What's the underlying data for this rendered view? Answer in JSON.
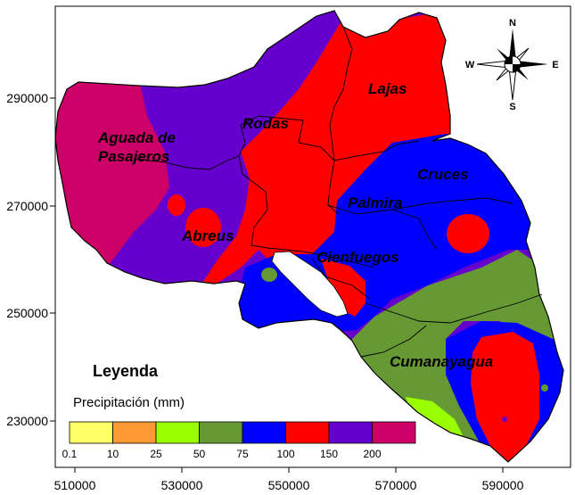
{
  "map": {
    "x_ticks": [
      "510000",
      "530000",
      "550000",
      "570000",
      "590000"
    ],
    "y_ticks": [
      "290000",
      "270000",
      "250000",
      "230000"
    ],
    "municipalities": [
      {
        "name": "Aguada de",
        "name2": "Pasajeros"
      },
      {
        "name": "Rodas"
      },
      {
        "name": "Lajas"
      },
      {
        "name": "Cruces"
      },
      {
        "name": "Palmira"
      },
      {
        "name": "Abreus"
      },
      {
        "name": "Cienfuegos"
      },
      {
        "name": "Cumanayagua"
      }
    ],
    "compass": {
      "n": "N",
      "s": "S",
      "e": "E",
      "w": "W"
    }
  },
  "legend": {
    "title": "Leyenda",
    "subtitle": "Precipitación (mm)",
    "breaks": [
      "0.1",
      "10",
      "25",
      "50",
      "75",
      "100",
      "150",
      "200"
    ],
    "colors": [
      "#ffff66",
      "#ff9933",
      "#99ff00",
      "#669933",
      "#0000ff",
      "#ff0000",
      "#6600cc",
      "#cc0066"
    ]
  },
  "colors": {
    "prec_200_plus": "#cc0066",
    "prec_150_200": "#6600cc",
    "prec_100_150": "#ff0000",
    "prec_75_100": "#0000ff",
    "prec_50_75": "#669933",
    "prec_25_50": "#99ff00",
    "prec_10_25": "#ff9933",
    "water": "#ffffff"
  }
}
